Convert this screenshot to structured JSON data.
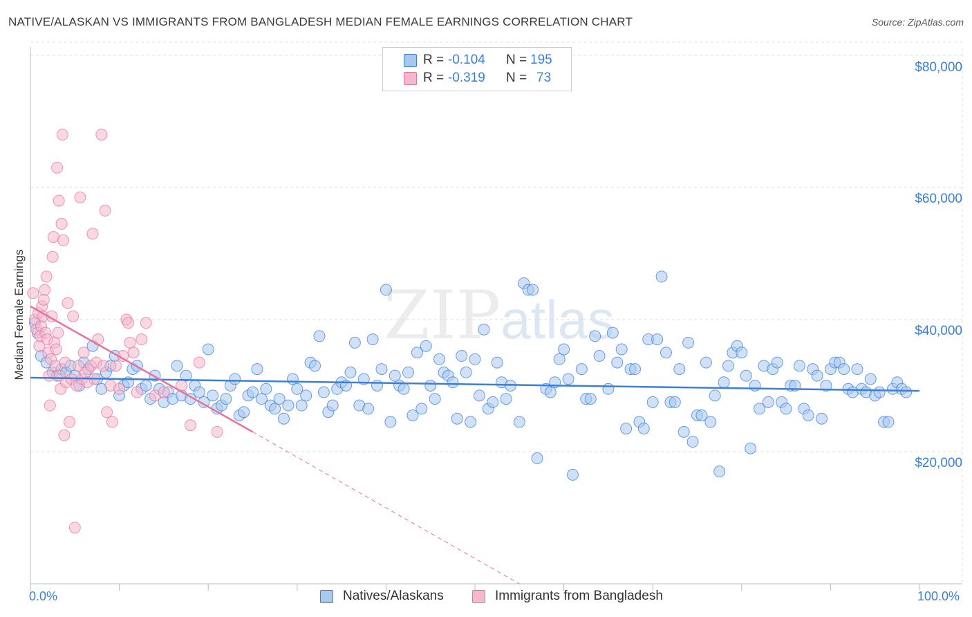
{
  "title": "NATIVE/ALASKAN VS IMMIGRANTS FROM BANGLADESH MEDIAN FEMALE EARNINGS CORRELATION CHART",
  "source": "Source: ZipAtlas.com",
  "watermark": {
    "zip": "ZIP",
    "atlas": "atlas"
  },
  "colors": {
    "blue": "#3b7fd6",
    "blue_fill": "#a9c8f0",
    "pink": "#e8729a",
    "pink_fill": "#f5b8cc"
  },
  "legend": {
    "r_label": "R =",
    "n_label": "N =",
    "series1": {
      "r": "-0.104",
      "n": "195"
    },
    "series2": {
      "r": "-0.319",
      "n": "73"
    }
  },
  "chart_data": {
    "type": "scatter",
    "title": "NATIVE/ALASKAN VS IMMIGRANTS FROM BANGLADESH MEDIAN FEMALE EARNINGS CORRELATION CHART",
    "xlabel": "",
    "ylabel": "Median Female Earnings",
    "xlim": [
      0,
      100
    ],
    "ylim": [
      0,
      82000
    ],
    "x_tick_labels": [
      "0.0%",
      "100.0%"
    ],
    "y_ticks": [
      20000,
      40000,
      60000,
      80000
    ],
    "y_tick_labels": [
      "$20,000",
      "$40,000",
      "$60,000",
      "$80,000"
    ],
    "legend_position": "bottom",
    "series": [
      {
        "name": "Natives/Alaskans",
        "color": "#3b7fd6",
        "trend": {
          "x": [
            0,
            100
          ],
          "y": [
            31200,
            29200
          ]
        },
        "points": [
          [
            0.5,
            39500
          ],
          [
            0.8,
            38000
          ],
          [
            1.2,
            34500
          ],
          [
            1.8,
            33500
          ],
          [
            2.5,
            32000
          ],
          [
            3,
            31500
          ],
          [
            3.5,
            32500
          ],
          [
            4,
            32000
          ],
          [
            4.5,
            33000
          ],
          [
            5,
            31500
          ],
          [
            5.5,
            30000
          ],
          [
            6,
            33500
          ],
          [
            6.5,
            32500
          ],
          [
            7,
            36000
          ],
          [
            7.5,
            31000
          ],
          [
            8,
            29500
          ],
          [
            8.5,
            32000
          ],
          [
            9,
            33000
          ],
          [
            9.5,
            34500
          ],
          [
            10,
            28500
          ],
          [
            10.5,
            30000
          ],
          [
            11,
            30500
          ],
          [
            11.5,
            32500
          ],
          [
            12,
            33000
          ],
          [
            12.5,
            29500
          ],
          [
            13,
            30000
          ],
          [
            13.5,
            28000
          ],
          [
            14,
            31500
          ],
          [
            14.5,
            29500
          ],
          [
            15,
            27500
          ],
          [
            15.5,
            29000
          ],
          [
            16,
            28000
          ],
          [
            16.5,
            33000
          ],
          [
            17,
            28500
          ],
          [
            17.5,
            31500
          ],
          [
            18,
            28000
          ],
          [
            18.5,
            30000
          ],
          [
            19,
            29000
          ],
          [
            19.5,
            27500
          ],
          [
            20,
            35500
          ],
          [
            20.5,
            28500
          ],
          [
            21,
            26500
          ],
          [
            21.5,
            27000
          ],
          [
            22,
            28000
          ],
          [
            22.5,
            30000
          ],
          [
            23,
            31000
          ],
          [
            23.5,
            25500
          ],
          [
            24,
            26000
          ],
          [
            24.5,
            28500
          ],
          [
            25,
            29000
          ],
          [
            25.5,
            32500
          ],
          [
            26,
            28000
          ],
          [
            26.5,
            29500
          ],
          [
            27,
            27000
          ],
          [
            27.5,
            26500
          ],
          [
            28,
            28000
          ],
          [
            28.5,
            25000
          ],
          [
            29,
            27000
          ],
          [
            29.5,
            31000
          ],
          [
            30,
            29500
          ],
          [
            30.5,
            27000
          ],
          [
            31,
            28500
          ],
          [
            31.5,
            33500
          ],
          [
            32,
            33000
          ],
          [
            32.5,
            37500
          ],
          [
            33,
            29000
          ],
          [
            33.5,
            26000
          ],
          [
            34,
            27000
          ],
          [
            34.5,
            29500
          ],
          [
            35,
            30500
          ],
          [
            35.5,
            30000
          ],
          [
            36,
            32000
          ],
          [
            36.5,
            36500
          ],
          [
            37,
            27000
          ],
          [
            37.5,
            31000
          ],
          [
            38,
            26500
          ],
          [
            38.5,
            37000
          ],
          [
            39,
            30000
          ],
          [
            39.5,
            32500
          ],
          [
            40,
            44500
          ],
          [
            40.5,
            24500
          ],
          [
            41,
            31500
          ],
          [
            41.5,
            30000
          ],
          [
            42,
            29500
          ],
          [
            42.5,
            32000
          ],
          [
            43,
            25500
          ],
          [
            43.5,
            35000
          ],
          [
            44,
            26500
          ],
          [
            44.5,
            36000
          ],
          [
            45,
            30000
          ],
          [
            45.5,
            28000
          ],
          [
            46,
            34000
          ],
          [
            46.5,
            32000
          ],
          [
            47,
            31500
          ],
          [
            47.5,
            30500
          ],
          [
            48,
            25000
          ],
          [
            48.5,
            34500
          ],
          [
            49,
            32000
          ],
          [
            49.5,
            24500
          ],
          [
            50,
            34000
          ],
          [
            50.5,
            28500
          ],
          [
            51,
            38500
          ],
          [
            51.5,
            26500
          ],
          [
            52,
            27500
          ],
          [
            52.5,
            33500
          ],
          [
            53,
            30500
          ],
          [
            53.5,
            28000
          ],
          [
            54,
            30000
          ],
          [
            55,
            24500
          ],
          [
            55.5,
            45500
          ],
          [
            56,
            44500
          ],
          [
            56.5,
            44500
          ],
          [
            57,
            19000
          ],
          [
            58,
            29500
          ],
          [
            58.5,
            29000
          ],
          [
            59,
            30500
          ],
          [
            59.5,
            34000
          ],
          [
            60,
            35500
          ],
          [
            60.5,
            31000
          ],
          [
            61,
            16500
          ],
          [
            62,
            32500
          ],
          [
            62.5,
            28000
          ],
          [
            63,
            28000
          ],
          [
            63.5,
            37500
          ],
          [
            64,
            34500
          ],
          [
            65,
            29500
          ],
          [
            65.5,
            38000
          ],
          [
            66,
            33500
          ],
          [
            66.5,
            35500
          ],
          [
            67,
            23500
          ],
          [
            67.5,
            32500
          ],
          [
            68,
            32500
          ],
          [
            68.5,
            24500
          ],
          [
            69,
            23500
          ],
          [
            69.5,
            37000
          ],
          [
            70,
            27500
          ],
          [
            70.5,
            37000
          ],
          [
            71,
            46500
          ],
          [
            71.5,
            35000
          ],
          [
            72,
            27500
          ],
          [
            72.5,
            27500
          ],
          [
            73,
            32500
          ],
          [
            73.5,
            23000
          ],
          [
            74,
            36500
          ],
          [
            74.5,
            21500
          ],
          [
            75,
            25500
          ],
          [
            75.5,
            25500
          ],
          [
            76,
            33500
          ],
          [
            76.5,
            24500
          ],
          [
            77,
            28500
          ],
          [
            77.5,
            17000
          ],
          [
            78,
            30500
          ],
          [
            78.5,
            33000
          ],
          [
            79,
            35000
          ],
          [
            79.5,
            36000
          ],
          [
            80,
            35000
          ],
          [
            80.5,
            31500
          ],
          [
            81,
            20500
          ],
          [
            81.5,
            30000
          ],
          [
            82,
            26500
          ],
          [
            82.5,
            33000
          ],
          [
            83,
            27500
          ],
          [
            83.5,
            32500
          ],
          [
            84,
            33500
          ],
          [
            84.5,
            27500
          ],
          [
            85,
            26500
          ],
          [
            85.5,
            30000
          ],
          [
            86,
            30000
          ],
          [
            86.5,
            33000
          ],
          [
            87,
            26500
          ],
          [
            87.5,
            25500
          ],
          [
            88,
            32500
          ],
          [
            88.5,
            31500
          ],
          [
            89,
            25000
          ],
          [
            89.5,
            30000
          ],
          [
            90,
            32500
          ],
          [
            90.5,
            33500
          ],
          [
            91,
            33500
          ],
          [
            91.5,
            32500
          ],
          [
            92,
            29500
          ],
          [
            92.5,
            29000
          ],
          [
            93,
            32500
          ],
          [
            93.5,
            29500
          ],
          [
            94,
            29000
          ],
          [
            94.5,
            31000
          ],
          [
            95,
            28500
          ],
          [
            95.5,
            29000
          ],
          [
            96,
            24500
          ],
          [
            96.5,
            24500
          ],
          [
            97,
            29500
          ],
          [
            97.5,
            30500
          ],
          [
            98,
            29500
          ],
          [
            98.5,
            29000
          ]
        ]
      },
      {
        "name": "Immigrants from Bangladesh",
        "color": "#e8729a",
        "trend": {
          "x": [
            0,
            25
          ],
          "y": [
            42000,
            23000
          ]
        },
        "trend_extension": {
          "x": [
            25,
            55
          ],
          "y": [
            23000,
            0
          ]
        },
        "points": [
          [
            0.3,
            44000
          ],
          [
            0.5,
            40000
          ],
          [
            0.7,
            38500
          ],
          [
            0.9,
            41000
          ],
          [
            1,
            36000
          ],
          [
            1.1,
            37500
          ],
          [
            1.2,
            39000
          ],
          [
            1.3,
            42000
          ],
          [
            1.4,
            40500
          ],
          [
            1.5,
            43000
          ],
          [
            1.6,
            44500
          ],
          [
            1.7,
            38000
          ],
          [
            1.8,
            46500
          ],
          [
            1.9,
            37000
          ],
          [
            2,
            35000
          ],
          [
            2.1,
            31500
          ],
          [
            2.2,
            27000
          ],
          [
            2.3,
            34000
          ],
          [
            2.4,
            40500
          ],
          [
            2.5,
            49500
          ],
          [
            2.6,
            52500
          ],
          [
            2.7,
            36500
          ],
          [
            2.8,
            33000
          ],
          [
            2.9,
            35500
          ],
          [
            3,
            63000
          ],
          [
            3.1,
            38000
          ],
          [
            3.2,
            58000
          ],
          [
            3.3,
            31500
          ],
          [
            3.4,
            29500
          ],
          [
            3.5,
            54500
          ],
          [
            3.6,
            68000
          ],
          [
            3.7,
            52000
          ],
          [
            3.8,
            22500
          ],
          [
            3.9,
            33500
          ],
          [
            4,
            30500
          ],
          [
            4.2,
            42500
          ],
          [
            4.4,
            24500
          ],
          [
            4.6,
            31000
          ],
          [
            4.8,
            40500
          ],
          [
            5,
            8500
          ],
          [
            5.2,
            30000
          ],
          [
            5.4,
            33000
          ],
          [
            5.6,
            58500
          ],
          [
            5.8,
            31000
          ],
          [
            6,
            35000
          ],
          [
            6.2,
            32000
          ],
          [
            6.4,
            30500
          ],
          [
            6.8,
            33000
          ],
          [
            7,
            53000
          ],
          [
            7.2,
            31000
          ],
          [
            7.4,
            33500
          ],
          [
            7.6,
            37000
          ],
          [
            8,
            68000
          ],
          [
            8.2,
            33000
          ],
          [
            8.4,
            56500
          ],
          [
            8.6,
            26000
          ],
          [
            9,
            30000
          ],
          [
            9.2,
            24500
          ],
          [
            9.6,
            33000
          ],
          [
            10,
            29500
          ],
          [
            10.4,
            34500
          ],
          [
            10.8,
            40000
          ],
          [
            11,
            39500
          ],
          [
            11.2,
            36500
          ],
          [
            11.6,
            35000
          ],
          [
            12,
            29000
          ],
          [
            12.5,
            37000
          ],
          [
            13,
            39500
          ],
          [
            14,
            28500
          ],
          [
            15,
            29000
          ],
          [
            17,
            30000
          ],
          [
            18,
            24000
          ],
          [
            19,
            33500
          ],
          [
            21,
            23000
          ]
        ]
      }
    ]
  },
  "bottom_legend": {
    "series1": "Natives/Alaskans",
    "series2": "Immigrants from Bangladesh"
  }
}
